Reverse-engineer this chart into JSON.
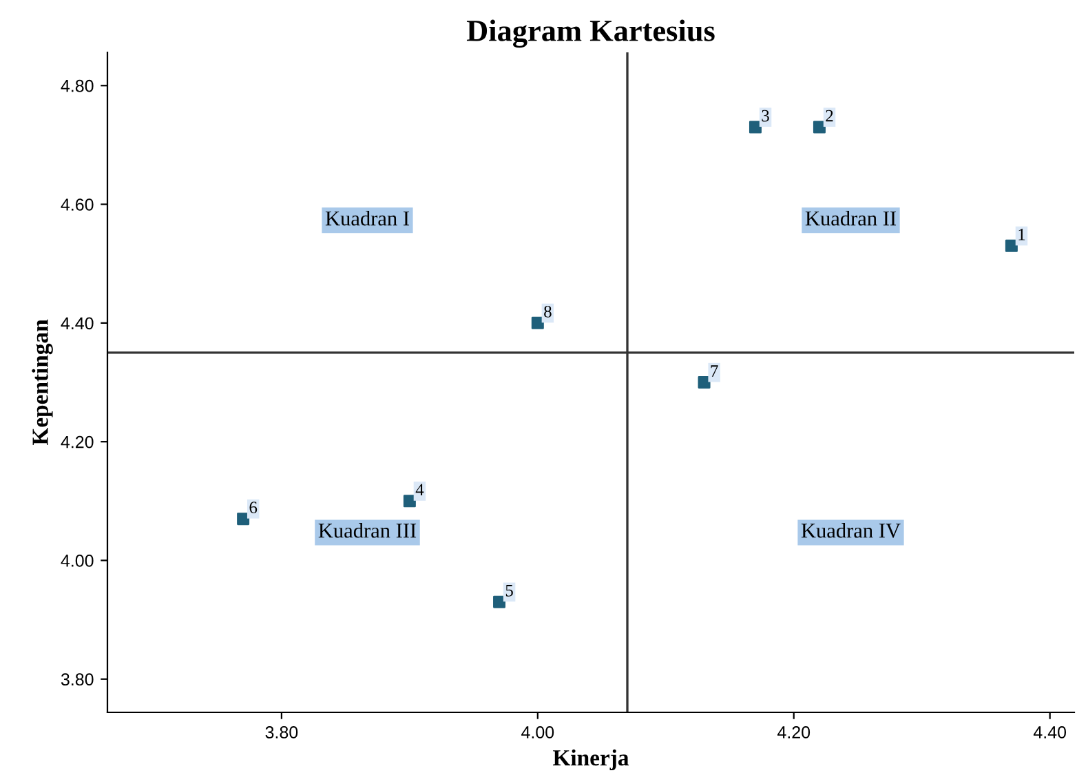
{
  "chart_data": {
    "type": "scatter",
    "title": "Diagram Kartesius",
    "xlabel": "Kinerja",
    "ylabel": "Kepentingan",
    "x": [
      4.37,
      4.22,
      4.17,
      3.9,
      3.97,
      3.77,
      4.13,
      4.0
    ],
    "values": [
      4.53,
      4.73,
      4.73,
      4.1,
      3.93,
      4.07,
      4.3,
      4.4
    ],
    "color": "#1f5f7a",
    "marker": "square",
    "xlim": [
      3.664,
      4.419
    ],
    "ylim": [
      3.744,
      4.856
    ],
    "xticks": [
      {
        "value": 3.8,
        "label": "3.80"
      },
      {
        "value": 4.0,
        "label": "4.00"
      },
      {
        "value": 4.2,
        "label": "4.20"
      },
      {
        "value": 4.4,
        "label": "4.40"
      }
    ],
    "yticks": [
      {
        "value": 3.8,
        "label": "3.80"
      },
      {
        "value": 4.0,
        "label": "4.00"
      },
      {
        "value": 4.2,
        "label": "4.20"
      },
      {
        "value": 4.4,
        "label": "4.40"
      },
      {
        "value": 4.6,
        "label": "4.60"
      },
      {
        "value": 4.8,
        "label": "4.80"
      }
    ],
    "ref_lines": [
      {
        "axis": "x",
        "value": 4.07,
        "color": "#333333"
      },
      {
        "axis": "y",
        "value": 4.35,
        "color": "#333333"
      }
    ],
    "annotations": [
      {
        "text": "1",
        "x": 4.37,
        "y": 4.53
      },
      {
        "text": "2",
        "x": 4.22,
        "y": 4.73
      },
      {
        "text": "3",
        "x": 4.17,
        "y": 4.73
      },
      {
        "text": "4",
        "x": 3.9,
        "y": 4.1
      },
      {
        "text": "5",
        "x": 3.97,
        "y": 3.93
      },
      {
        "text": "6",
        "x": 3.77,
        "y": 4.07
      },
      {
        "text": "7",
        "x": 4.13,
        "y": 4.3
      },
      {
        "text": "8",
        "x": 4.0,
        "y": 4.4
      },
      "Kuadran I",
      "Kuadran II",
      "Kuadran III",
      "Kuadran IV"
    ],
    "grid": false,
    "legend": false
  }
}
